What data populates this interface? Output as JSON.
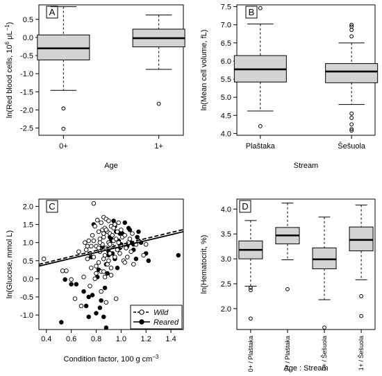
{
  "chart_data": [
    {
      "panel": "A",
      "type": "box",
      "xlabel": "Age",
      "ylabel_main": "ln(Red blood cells, 10",
      "ylabel_sup1": "6",
      "ylabel_mid": " μL",
      "ylabel_sup2": "−1",
      "ylabel_end": ")",
      "ylim": [
        -2.7,
        0.9
      ],
      "yticks": [
        -2.5,
        -2.0,
        -1.5,
        -1.0,
        -0.5,
        0.0,
        0.5
      ],
      "ytick_labels": [
        "-2.5",
        "-2.0",
        "-1.5",
        "-1.0",
        "-0.5",
        "0.0",
        "0.5"
      ],
      "categories": [
        "0+",
        "1+"
      ],
      "boxes": [
        {
          "category": "0+",
          "whisker_low": -1.46,
          "q1": -0.62,
          "median": -0.3,
          "q3": 0.07,
          "whisker_high": 0.85,
          "outliers": [
            -1.96,
            -2.52
          ]
        },
        {
          "category": "1+",
          "whisker_low": -0.88,
          "q1": -0.26,
          "median": -0.02,
          "q3": 0.23,
          "whisker_high": 0.62,
          "outliers": [
            -1.83
          ]
        }
      ]
    },
    {
      "panel": "B",
      "type": "box",
      "xlabel": "Stream",
      "ylabel": "ln(Mean cell volume, fL)",
      "ylim": [
        3.95,
        7.55
      ],
      "yticks": [
        4.0,
        4.5,
        5.0,
        5.5,
        6.0,
        6.5,
        7.0,
        7.5
      ],
      "ytick_labels": [
        "4.0",
        "4.5",
        "5.0",
        "5.5",
        "6.0",
        "6.5",
        "7.0",
        "7.5"
      ],
      "categories": [
        "Plaštaka",
        "Šešuola"
      ],
      "boxes": [
        {
          "category": "Plaštaka",
          "whisker_low": 4.62,
          "q1": 5.42,
          "median": 5.77,
          "q3": 6.15,
          "whisker_high": 7.02,
          "outliers": [
            7.46,
            4.2
          ]
        },
        {
          "category": "Šešuola",
          "whisker_low": 4.8,
          "q1": 5.4,
          "median": 5.71,
          "q3": 5.93,
          "whisker_high": 6.5,
          "outliers": [
            7.0,
            6.95,
            6.86,
            6.68,
            4.55,
            4.43,
            4.25,
            4.12,
            4.08
          ]
        }
      ]
    },
    {
      "panel": "C",
      "type": "scatter",
      "xlabel_main": "Condition factor, 100 g cm",
      "xlabel_sup": "−3",
      "ylabel_main": "ln(Glucose, mmol  L",
      "ylabel_sup": "−1",
      "ylabel_end": ")",
      "xlim": [
        0.34,
        1.5
      ],
      "ylim": [
        -1.4,
        2.2
      ],
      "xticks": [
        0.4,
        0.6,
        0.8,
        1.0,
        1.2,
        1.4
      ],
      "xtick_labels": [
        "0.4",
        "0.6",
        "0.8",
        "1.0",
        "1.2",
        "1.4"
      ],
      "yticks": [
        -1.0,
        -0.5,
        0.0,
        0.5,
        1.0,
        1.5,
        2.0
      ],
      "ytick_labels": [
        "-1.0",
        "-0.5",
        "0.0",
        "0.5",
        "1.0",
        "1.5",
        "2.0"
      ],
      "legend_position": "bottom-right",
      "series": [
        {
          "name": "Wild",
          "marker": "open-circle",
          "line": "dashed",
          "fit": {
            "x": [
              0.34,
              1.5
            ],
            "y": [
              0.4,
              1.36
            ]
          },
          "x": [
            0.38,
            0.53,
            0.56,
            0.6,
            0.63,
            0.66,
            0.68,
            0.7,
            0.71,
            0.72,
            0.73,
            0.74,
            0.75,
            0.76,
            0.76,
            0.77,
            0.78,
            0.78,
            0.79,
            0.8,
            0.8,
            0.81,
            0.82,
            0.82,
            0.83,
            0.83,
            0.84,
            0.84,
            0.85,
            0.85,
            0.86,
            0.86,
            0.86,
            0.87,
            0.87,
            0.88,
            0.88,
            0.89,
            0.89,
            0.9,
            0.9,
            0.91,
            0.91,
            0.92,
            0.92,
            0.93,
            0.93,
            0.94,
            0.95,
            0.95,
            0.96,
            0.97,
            0.97,
            0.98,
            0.99,
            1.0,
            1.0,
            1.01,
            1.02,
            1.03,
            1.04,
            1.05,
            1.06,
            1.07,
            1.08,
            1.09,
            1.1,
            1.12,
            1.14,
            1.18,
            1.2,
            0.79,
            0.84,
            0.88,
            0.92,
            0.96,
            0.9,
            0.82,
            0.86,
            0.94,
            0.78,
            0.8,
            0.87,
            0.91,
            0.98,
            1.03,
            0.75,
            0.73,
            0.83,
            0.88,
            0.86
          ],
          "y": [
            0.55,
            0.22,
            0.22,
            -0.02,
            -0.55,
            0.75,
            -0.75,
            0.05,
            1.0,
            0.8,
            0.55,
            1.05,
            -0.2,
            0.9,
            0.3,
            1.2,
            0.6,
            2.08,
            1.45,
            0.9,
            0.15,
            1.62,
            1.3,
            0.45,
            1.1,
            0.75,
            1.55,
            0.2,
            1.35,
            0.95,
            1.7,
            1.15,
            0.55,
            1.4,
            0.05,
            1.65,
            0.85,
            1.3,
            0.4,
            1.6,
            1.0,
            1.25,
            0.7,
            1.45,
            0.3,
            1.2,
            0.9,
            1.05,
            1.5,
            0.6,
            1.1,
            0.8,
            1.3,
            1.0,
            0.7,
            1.35,
            0.9,
            1.15,
            0.5,
            1.2,
            0.85,
            0.6,
            1.0,
            1.1,
            0.75,
            1.25,
            0.4,
            0.95,
            1.05,
            0.65,
            0.95,
            0.0,
            -0.35,
            -0.65,
            0.1,
            -0.55,
            0.5,
            0.85,
            1.25,
            1.4,
            1.05,
            0.35,
            0.65,
            0.95,
            1.55,
            0.45,
            0.7,
            0.9,
            1.0,
            1.35,
            0.2
          ]
        },
        {
          "name": "Reared",
          "marker": "filled-circle",
          "line": "solid",
          "fit": {
            "x": [
              0.34,
              1.5
            ],
            "y": [
              0.35,
              1.3
            ]
          },
          "x": [
            0.52,
            0.55,
            0.6,
            0.64,
            0.7,
            0.72,
            0.74,
            0.76,
            0.78,
            0.8,
            0.82,
            0.84,
            0.86,
            0.88,
            0.9,
            0.92,
            0.94,
            0.96,
            0.98,
            1.0,
            1.02,
            1.04,
            1.06,
            1.08,
            1.1,
            1.12,
            1.14,
            1.16,
            1.2,
            1.22,
            1.46,
            0.85,
            0.88,
            0.91,
            0.93,
            0.95,
            0.97,
            0.99,
            1.01,
            1.03,
            0.77,
            0.81,
            0.87,
            0.89,
            0.9,
            0.92,
            1.05,
            1.07,
            1.13,
            0.74,
            0.83,
            0.95,
            0.99,
            1.1
          ],
          "y": [
            -1.2,
            -0.02,
            -0.15,
            -0.15,
            -0.35,
            -0.75,
            -0.5,
            0.6,
            1.5,
            -0.95,
            0.25,
            -0.6,
            -1.05,
            -1.35,
            0.75,
            1.1,
            1.6,
            1.3,
            1.05,
            0.95,
            1.2,
            0.85,
            1.4,
            1.0,
            0.8,
            0.55,
            1.3,
            1.0,
            0.7,
            0.5,
            0.65,
            0.9,
            0.4,
            1.15,
            0.7,
            1.45,
            0.3,
            0.85,
            1.25,
            1.55,
            -0.45,
            0.05,
            -0.25,
            0.15,
            0.65,
            1.05,
            0.9,
            1.35,
            1.15,
            -1.05,
            -0.8,
            0.55,
            1.25,
            0.95
          ]
        }
      ]
    },
    {
      "panel": "D",
      "type": "box",
      "xlabel": "Age : Stream",
      "ylabel": "ln(Hematocrit, %)",
      "ylim": [
        1.58,
        4.2
      ],
      "yticks": [
        2.0,
        2.5,
        3.0,
        3.5,
        4.0
      ],
      "ytick_labels": [
        "2.0",
        "2.5",
        "3.0",
        "3.5",
        "4.0"
      ],
      "categories": [
        "0+ / Plaštaka",
        "1+ / Plaštaka",
        "0+ / Šešuola",
        "1+ / Šešuola"
      ],
      "boxes": [
        {
          "category": "0+ / Plaštaka",
          "whisker_low": 2.45,
          "q1": 3.0,
          "median": 3.18,
          "q3": 3.36,
          "whisker_high": 3.77,
          "outliers": [
            2.42,
            2.37,
            1.8
          ]
        },
        {
          "category": "1+ / Plaštaka",
          "whisker_low": 2.98,
          "q1": 3.3,
          "median": 3.47,
          "q3": 3.63,
          "whisker_high": 4.12,
          "outliers": [
            2.39
          ]
        },
        {
          "category": "0+ / Šešuola",
          "whisker_low": 2.18,
          "q1": 2.8,
          "median": 2.99,
          "q3": 3.22,
          "whisker_high": 3.84,
          "outliers": [
            1.62
          ]
        },
        {
          "category": "1+ / Šešuola",
          "whisker_low": 2.58,
          "q1": 3.16,
          "median": 3.38,
          "q3": 3.64,
          "whisker_high": 4.08,
          "outliers": [
            2.25,
            1.85
          ]
        }
      ]
    }
  ]
}
